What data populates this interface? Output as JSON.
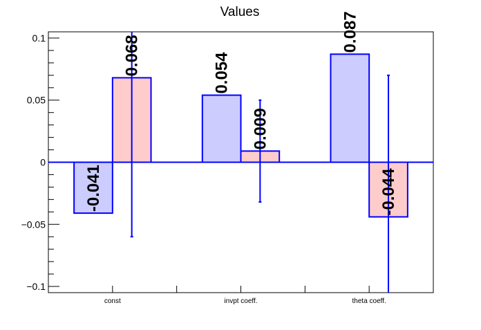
{
  "chart_data": {
    "type": "bar",
    "title": "Values",
    "xlabel": "",
    "ylabel": "",
    "categories": [
      "const",
      "invpt coeff.",
      "theta coeff."
    ],
    "series": [
      {
        "values": [
          -0.041,
          0.054,
          0.087
        ],
        "errors": [
          null,
          null,
          null
        ],
        "color": "#ccccff",
        "label_text": [
          "-0.041",
          "0.054",
          "0.087"
        ]
      },
      {
        "values": [
          0.068,
          0.009,
          -0.044
        ],
        "errors": [
          0.128,
          0.041,
          0.114
        ],
        "color": "#ffcccc",
        "label_text": [
          "0.068",
          "0.009",
          "-0.044"
        ]
      }
    ],
    "ylim": [
      -0.105,
      0.105
    ],
    "yticks": [
      -0.1,
      -0.05,
      0,
      0.05,
      0.1
    ],
    "ytick_labels": [
      "−0.1",
      "−0.05",
      "0",
      "0.05",
      "0.1"
    ],
    "grid": false,
    "legend": "none",
    "outline_color": "#0000ff"
  }
}
